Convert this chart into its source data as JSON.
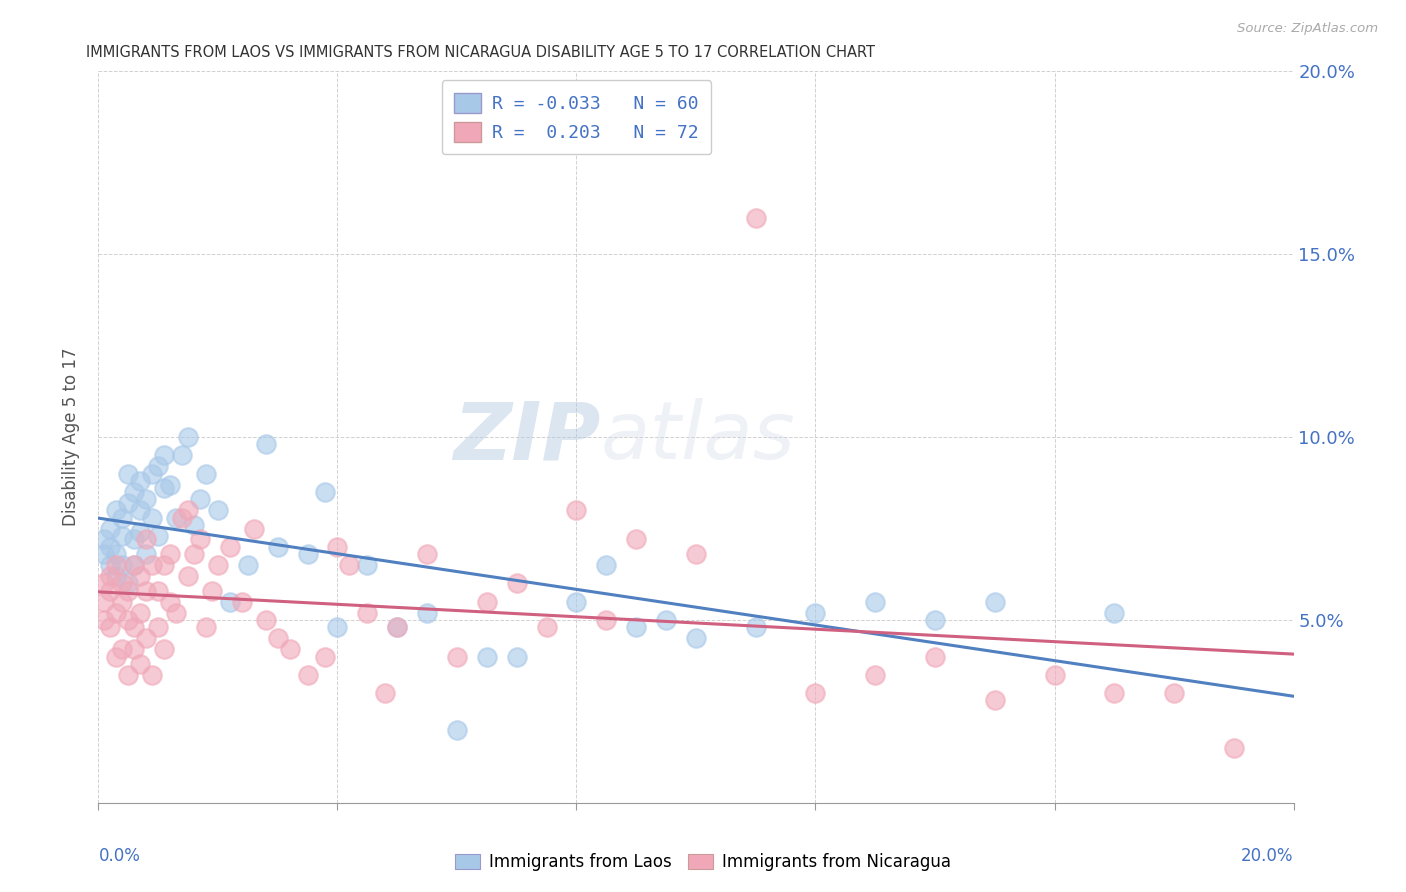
{
  "title": "IMMIGRANTS FROM LAOS VS IMMIGRANTS FROM NICARAGUA DISABILITY AGE 5 TO 17 CORRELATION CHART",
  "source": "Source: ZipAtlas.com",
  "ylabel": "Disability Age 5 to 17",
  "xlim": [
    0.0,
    0.2
  ],
  "ylim": [
    0.0,
    0.2
  ],
  "xticks": [
    0.0,
    0.04,
    0.08,
    0.12,
    0.16,
    0.2
  ],
  "yticks": [
    0.0,
    0.05,
    0.1,
    0.15,
    0.2
  ],
  "blue_color": "#a8c8e8",
  "pink_color": "#f0a8b8",
  "blue_line_color": "#5080c0",
  "pink_line_color": "#d06080",
  "blue_R": -0.033,
  "blue_N": 60,
  "pink_R": 0.203,
  "pink_N": 72,
  "legend_label_blue": "Immigrants from Laos",
  "legend_label_pink": "Immigrants from Nicaragua",
  "watermark_zip": "ZIP",
  "watermark_atlas": "atlas",
  "background_color": "#ffffff",
  "grid_color": "#cccccc",
  "blue_scatter_x": [
    0.001,
    0.001,
    0.002,
    0.002,
    0.002,
    0.003,
    0.003,
    0.003,
    0.004,
    0.004,
    0.004,
    0.005,
    0.005,
    0.005,
    0.006,
    0.006,
    0.006,
    0.007,
    0.007,
    0.007,
    0.008,
    0.008,
    0.009,
    0.009,
    0.01,
    0.01,
    0.011,
    0.011,
    0.012,
    0.013,
    0.014,
    0.015,
    0.016,
    0.017,
    0.018,
    0.02,
    0.022,
    0.025,
    0.028,
    0.03,
    0.035,
    0.038,
    0.04,
    0.045,
    0.05,
    0.055,
    0.06,
    0.065,
    0.07,
    0.08,
    0.085,
    0.09,
    0.095,
    0.1,
    0.11,
    0.12,
    0.13,
    0.14,
    0.15,
    0.17
  ],
  "blue_scatter_y": [
    0.068,
    0.072,
    0.065,
    0.07,
    0.075,
    0.062,
    0.068,
    0.08,
    0.065,
    0.073,
    0.078,
    0.06,
    0.082,
    0.09,
    0.065,
    0.072,
    0.085,
    0.074,
    0.08,
    0.088,
    0.068,
    0.083,
    0.09,
    0.078,
    0.092,
    0.073,
    0.086,
    0.095,
    0.087,
    0.078,
    0.095,
    0.1,
    0.076,
    0.083,
    0.09,
    0.08,
    0.055,
    0.065,
    0.098,
    0.07,
    0.068,
    0.085,
    0.048,
    0.065,
    0.048,
    0.052,
    0.02,
    0.04,
    0.04,
    0.055,
    0.065,
    0.048,
    0.05,
    0.045,
    0.048,
    0.052,
    0.055,
    0.05,
    0.055,
    0.052
  ],
  "pink_scatter_x": [
    0.001,
    0.001,
    0.001,
    0.002,
    0.002,
    0.002,
    0.003,
    0.003,
    0.003,
    0.004,
    0.004,
    0.004,
    0.005,
    0.005,
    0.005,
    0.006,
    0.006,
    0.006,
    0.007,
    0.007,
    0.007,
    0.008,
    0.008,
    0.008,
    0.009,
    0.009,
    0.01,
    0.01,
    0.011,
    0.011,
    0.012,
    0.012,
    0.013,
    0.014,
    0.015,
    0.015,
    0.016,
    0.017,
    0.018,
    0.019,
    0.02,
    0.022,
    0.024,
    0.026,
    0.028,
    0.03,
    0.032,
    0.035,
    0.038,
    0.04,
    0.042,
    0.045,
    0.048,
    0.05,
    0.055,
    0.06,
    0.065,
    0.07,
    0.075,
    0.08,
    0.085,
    0.09,
    0.1,
    0.11,
    0.12,
    0.13,
    0.14,
    0.15,
    0.16,
    0.17,
    0.18,
    0.19
  ],
  "pink_scatter_y": [
    0.06,
    0.055,
    0.05,
    0.048,
    0.058,
    0.062,
    0.04,
    0.052,
    0.065,
    0.042,
    0.06,
    0.055,
    0.035,
    0.05,
    0.058,
    0.042,
    0.048,
    0.065,
    0.038,
    0.052,
    0.062,
    0.045,
    0.058,
    0.072,
    0.035,
    0.065,
    0.048,
    0.058,
    0.042,
    0.065,
    0.055,
    0.068,
    0.052,
    0.078,
    0.062,
    0.08,
    0.068,
    0.072,
    0.048,
    0.058,
    0.065,
    0.07,
    0.055,
    0.075,
    0.05,
    0.045,
    0.042,
    0.035,
    0.04,
    0.07,
    0.065,
    0.052,
    0.03,
    0.048,
    0.068,
    0.04,
    0.055,
    0.06,
    0.048,
    0.08,
    0.05,
    0.072,
    0.068,
    0.16,
    0.03,
    0.035,
    0.04,
    0.028,
    0.035,
    0.03,
    0.03,
    0.015
  ]
}
